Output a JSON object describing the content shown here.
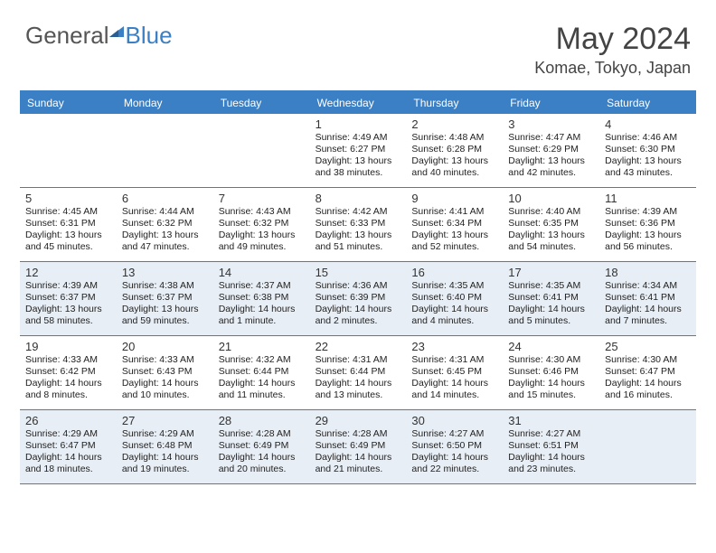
{
  "brand": {
    "part1": "General",
    "part2": "Blue"
  },
  "title": "May 2024",
  "location": "Komae, Tokyo, Japan",
  "colors": {
    "accent": "#3b7fc4",
    "shaded_bg": "#e8eef5",
    "text": "#333333",
    "background": "#ffffff"
  },
  "weekdays": [
    "Sunday",
    "Monday",
    "Tuesday",
    "Wednesday",
    "Thursday",
    "Friday",
    "Saturday"
  ],
  "weeks": [
    [
      {
        "day": "",
        "sunrise": "",
        "sunset": "",
        "daylight": "",
        "shaded": false
      },
      {
        "day": "",
        "sunrise": "",
        "sunset": "",
        "daylight": "",
        "shaded": false
      },
      {
        "day": "",
        "sunrise": "",
        "sunset": "",
        "daylight": "",
        "shaded": false
      },
      {
        "day": "1",
        "sunrise": "Sunrise: 4:49 AM",
        "sunset": "Sunset: 6:27 PM",
        "daylight": "Daylight: 13 hours and 38 minutes.",
        "shaded": false
      },
      {
        "day": "2",
        "sunrise": "Sunrise: 4:48 AM",
        "sunset": "Sunset: 6:28 PM",
        "daylight": "Daylight: 13 hours and 40 minutes.",
        "shaded": false
      },
      {
        "day": "3",
        "sunrise": "Sunrise: 4:47 AM",
        "sunset": "Sunset: 6:29 PM",
        "daylight": "Daylight: 13 hours and 42 minutes.",
        "shaded": false
      },
      {
        "day": "4",
        "sunrise": "Sunrise: 4:46 AM",
        "sunset": "Sunset: 6:30 PM",
        "daylight": "Daylight: 13 hours and 43 minutes.",
        "shaded": false
      }
    ],
    [
      {
        "day": "5",
        "sunrise": "Sunrise: 4:45 AM",
        "sunset": "Sunset: 6:31 PM",
        "daylight": "Daylight: 13 hours and 45 minutes.",
        "shaded": false
      },
      {
        "day": "6",
        "sunrise": "Sunrise: 4:44 AM",
        "sunset": "Sunset: 6:32 PM",
        "daylight": "Daylight: 13 hours and 47 minutes.",
        "shaded": false
      },
      {
        "day": "7",
        "sunrise": "Sunrise: 4:43 AM",
        "sunset": "Sunset: 6:32 PM",
        "daylight": "Daylight: 13 hours and 49 minutes.",
        "shaded": false
      },
      {
        "day": "8",
        "sunrise": "Sunrise: 4:42 AM",
        "sunset": "Sunset: 6:33 PM",
        "daylight": "Daylight: 13 hours and 51 minutes.",
        "shaded": false
      },
      {
        "day": "9",
        "sunrise": "Sunrise: 4:41 AM",
        "sunset": "Sunset: 6:34 PM",
        "daylight": "Daylight: 13 hours and 52 minutes.",
        "shaded": false
      },
      {
        "day": "10",
        "sunrise": "Sunrise: 4:40 AM",
        "sunset": "Sunset: 6:35 PM",
        "daylight": "Daylight: 13 hours and 54 minutes.",
        "shaded": false
      },
      {
        "day": "11",
        "sunrise": "Sunrise: 4:39 AM",
        "sunset": "Sunset: 6:36 PM",
        "daylight": "Daylight: 13 hours and 56 minutes.",
        "shaded": false
      }
    ],
    [
      {
        "day": "12",
        "sunrise": "Sunrise: 4:39 AM",
        "sunset": "Sunset: 6:37 PM",
        "daylight": "Daylight: 13 hours and 58 minutes.",
        "shaded": true
      },
      {
        "day": "13",
        "sunrise": "Sunrise: 4:38 AM",
        "sunset": "Sunset: 6:37 PM",
        "daylight": "Daylight: 13 hours and 59 minutes.",
        "shaded": true
      },
      {
        "day": "14",
        "sunrise": "Sunrise: 4:37 AM",
        "sunset": "Sunset: 6:38 PM",
        "daylight": "Daylight: 14 hours and 1 minute.",
        "shaded": true
      },
      {
        "day": "15",
        "sunrise": "Sunrise: 4:36 AM",
        "sunset": "Sunset: 6:39 PM",
        "daylight": "Daylight: 14 hours and 2 minutes.",
        "shaded": true
      },
      {
        "day": "16",
        "sunrise": "Sunrise: 4:35 AM",
        "sunset": "Sunset: 6:40 PM",
        "daylight": "Daylight: 14 hours and 4 minutes.",
        "shaded": true
      },
      {
        "day": "17",
        "sunrise": "Sunrise: 4:35 AM",
        "sunset": "Sunset: 6:41 PM",
        "daylight": "Daylight: 14 hours and 5 minutes.",
        "shaded": true
      },
      {
        "day": "18",
        "sunrise": "Sunrise: 4:34 AM",
        "sunset": "Sunset: 6:41 PM",
        "daylight": "Daylight: 14 hours and 7 minutes.",
        "shaded": true
      }
    ],
    [
      {
        "day": "19",
        "sunrise": "Sunrise: 4:33 AM",
        "sunset": "Sunset: 6:42 PM",
        "daylight": "Daylight: 14 hours and 8 minutes.",
        "shaded": false
      },
      {
        "day": "20",
        "sunrise": "Sunrise: 4:33 AM",
        "sunset": "Sunset: 6:43 PM",
        "daylight": "Daylight: 14 hours and 10 minutes.",
        "shaded": false
      },
      {
        "day": "21",
        "sunrise": "Sunrise: 4:32 AM",
        "sunset": "Sunset: 6:44 PM",
        "daylight": "Daylight: 14 hours and 11 minutes.",
        "shaded": false
      },
      {
        "day": "22",
        "sunrise": "Sunrise: 4:31 AM",
        "sunset": "Sunset: 6:44 PM",
        "daylight": "Daylight: 14 hours and 13 minutes.",
        "shaded": false
      },
      {
        "day": "23",
        "sunrise": "Sunrise: 4:31 AM",
        "sunset": "Sunset: 6:45 PM",
        "daylight": "Daylight: 14 hours and 14 minutes.",
        "shaded": false
      },
      {
        "day": "24",
        "sunrise": "Sunrise: 4:30 AM",
        "sunset": "Sunset: 6:46 PM",
        "daylight": "Daylight: 14 hours and 15 minutes.",
        "shaded": false
      },
      {
        "day": "25",
        "sunrise": "Sunrise: 4:30 AM",
        "sunset": "Sunset: 6:47 PM",
        "daylight": "Daylight: 14 hours and 16 minutes.",
        "shaded": false
      }
    ],
    [
      {
        "day": "26",
        "sunrise": "Sunrise: 4:29 AM",
        "sunset": "Sunset: 6:47 PM",
        "daylight": "Daylight: 14 hours and 18 minutes.",
        "shaded": true
      },
      {
        "day": "27",
        "sunrise": "Sunrise: 4:29 AM",
        "sunset": "Sunset: 6:48 PM",
        "daylight": "Daylight: 14 hours and 19 minutes.",
        "shaded": true
      },
      {
        "day": "28",
        "sunrise": "Sunrise: 4:28 AM",
        "sunset": "Sunset: 6:49 PM",
        "daylight": "Daylight: 14 hours and 20 minutes.",
        "shaded": true
      },
      {
        "day": "29",
        "sunrise": "Sunrise: 4:28 AM",
        "sunset": "Sunset: 6:49 PM",
        "daylight": "Daylight: 14 hours and 21 minutes.",
        "shaded": true
      },
      {
        "day": "30",
        "sunrise": "Sunrise: 4:27 AM",
        "sunset": "Sunset: 6:50 PM",
        "daylight": "Daylight: 14 hours and 22 minutes.",
        "shaded": true
      },
      {
        "day": "31",
        "sunrise": "Sunrise: 4:27 AM",
        "sunset": "Sunset: 6:51 PM",
        "daylight": "Daylight: 14 hours and 23 minutes.",
        "shaded": true
      },
      {
        "day": "",
        "sunrise": "",
        "sunset": "",
        "daylight": "",
        "shaded": true
      }
    ]
  ]
}
